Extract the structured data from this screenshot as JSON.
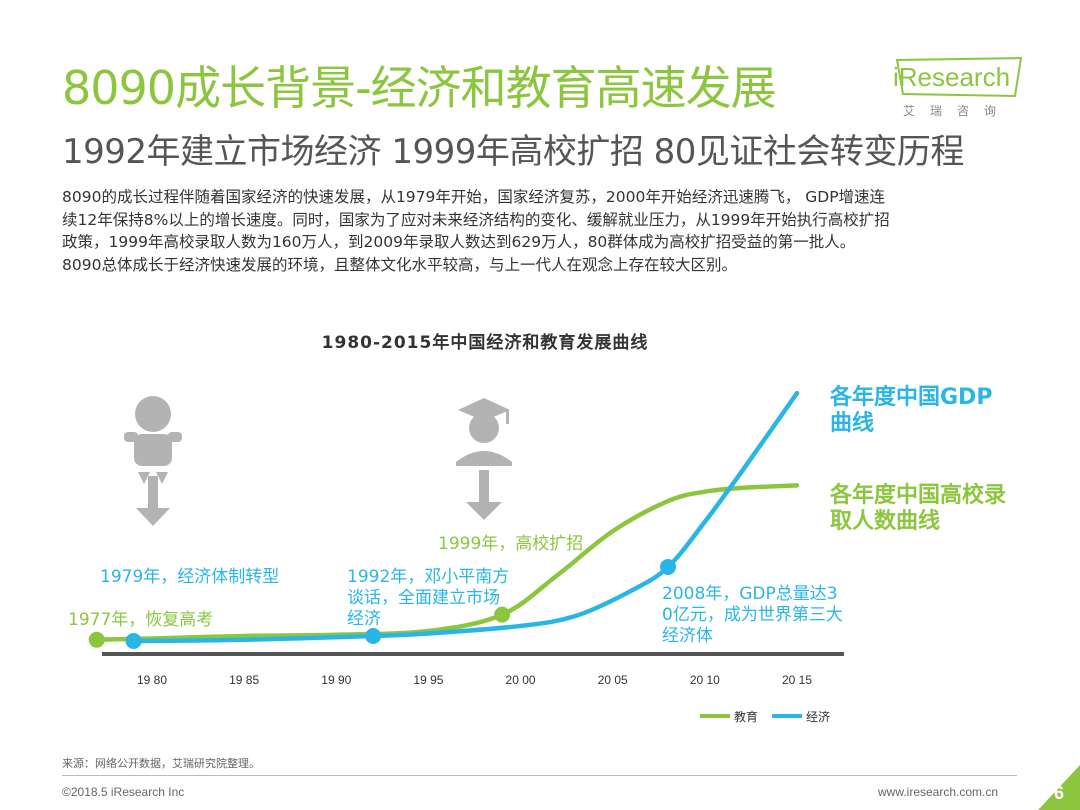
{
  "header": {
    "title": "8090成长背景-经济和教育高速发展",
    "subtitle": "1992年建立市场经济 1999年高校扩招 80见证社会转变历程"
  },
  "logo": {
    "main": "iResearch",
    "sub": "艾瑞咨询"
  },
  "body": {
    "lines": [
      "8090的成长过程伴随着国家经济的快速发展，从1979年开始，国家经济复苏，2000年开始经济迅速腾飞， GDP增速连",
      "续12年保持8%以上的增长速度。同时，国家为了应对未来经济结构的变化、缓解就业压力，从1999年开始执行高校扩招",
      "政策，1999年高校录取人数为160万人，到2009年录取人数达到629万人，80群体成为高校扩招受益的第一批人。",
      "8090总体成长于经济快速发展的环境，且整体文化水平较高，与上一代人在观念上存在较大区别。"
    ]
  },
  "colors": {
    "green": "#8cc63f",
    "blue": "#29b6e6",
    "axis": "#555555",
    "icon": "#b3b3b3"
  },
  "chart_data": {
    "type": "line",
    "title": "1980-2015年中国经济和教育发展曲线",
    "x_ticks": [
      "19 80",
      "19 85",
      "19 90",
      "19 95",
      "20 00",
      "20 05",
      "20 10",
      "20 15"
    ],
    "x_tick_years": [
      1980,
      1985,
      1990,
      1995,
      2000,
      2005,
      2010,
      2015
    ],
    "xlim": [
      1980,
      2015
    ],
    "series": [
      {
        "name": "教育",
        "color": "#8cc63f",
        "x": [
          1977,
          1980,
          1985,
          1990,
          1995,
          1999,
          2002,
          2005,
          2008,
          2010,
          2012,
          2015
        ],
        "y": [
          0.2,
          0.4,
          0.8,
          1.0,
          1.6,
          4.2,
          10.5,
          17.5,
          22.3,
          23.8,
          24.4,
          24.8
        ]
      },
      {
        "name": "经济",
        "color": "#29b6e6",
        "x": [
          1979,
          1985,
          1992,
          1995,
          2000,
          2003,
          2006,
          2008,
          2010,
          2012,
          2015
        ],
        "y": [
          0.0,
          0.2,
          0.8,
          1.2,
          2.4,
          4.0,
          8.0,
          11.8,
          19.0,
          27.0,
          39.5
        ]
      }
    ],
    "events": [
      {
        "x": 1977,
        "series": "教育",
        "label": "1977年，恢复高考",
        "color": "#8cc63f"
      },
      {
        "x": 1979,
        "series": "经济",
        "label": "1979年，经济体制转型",
        "color": "#29b6e6"
      },
      {
        "x": 1992,
        "series": "经济",
        "label": "1992年，邓小平南方谈话，全面建立市场经济",
        "color": "#29b6e6"
      },
      {
        "x": 1999,
        "series": "教育",
        "label": "1999年，高校扩招",
        "color": "#8cc63f"
      },
      {
        "x": 2008,
        "series": "经济",
        "label": "2008年，GDP总量达30亿元，成为世界第三大经济体",
        "color": "#29b6e6"
      }
    ],
    "curve_labels": {
      "gdp": "各年度中国GDP曲线",
      "enrollment": "各年度中国高校录取人数曲线"
    },
    "legend": [
      {
        "label": "教育",
        "color": "#8cc63f"
      },
      {
        "label": "经济",
        "color": "#29b6e6"
      }
    ],
    "legend_position": "bottom-right",
    "icons": [
      "baby-icon",
      "graduate-icon"
    ]
  },
  "footer": {
    "source": "来源：网络公开数据，艾瑞研究院整理。",
    "copyright": "©2018.5 iResearch Inc",
    "website": "www.iresearch.com.cn",
    "page": "6"
  }
}
